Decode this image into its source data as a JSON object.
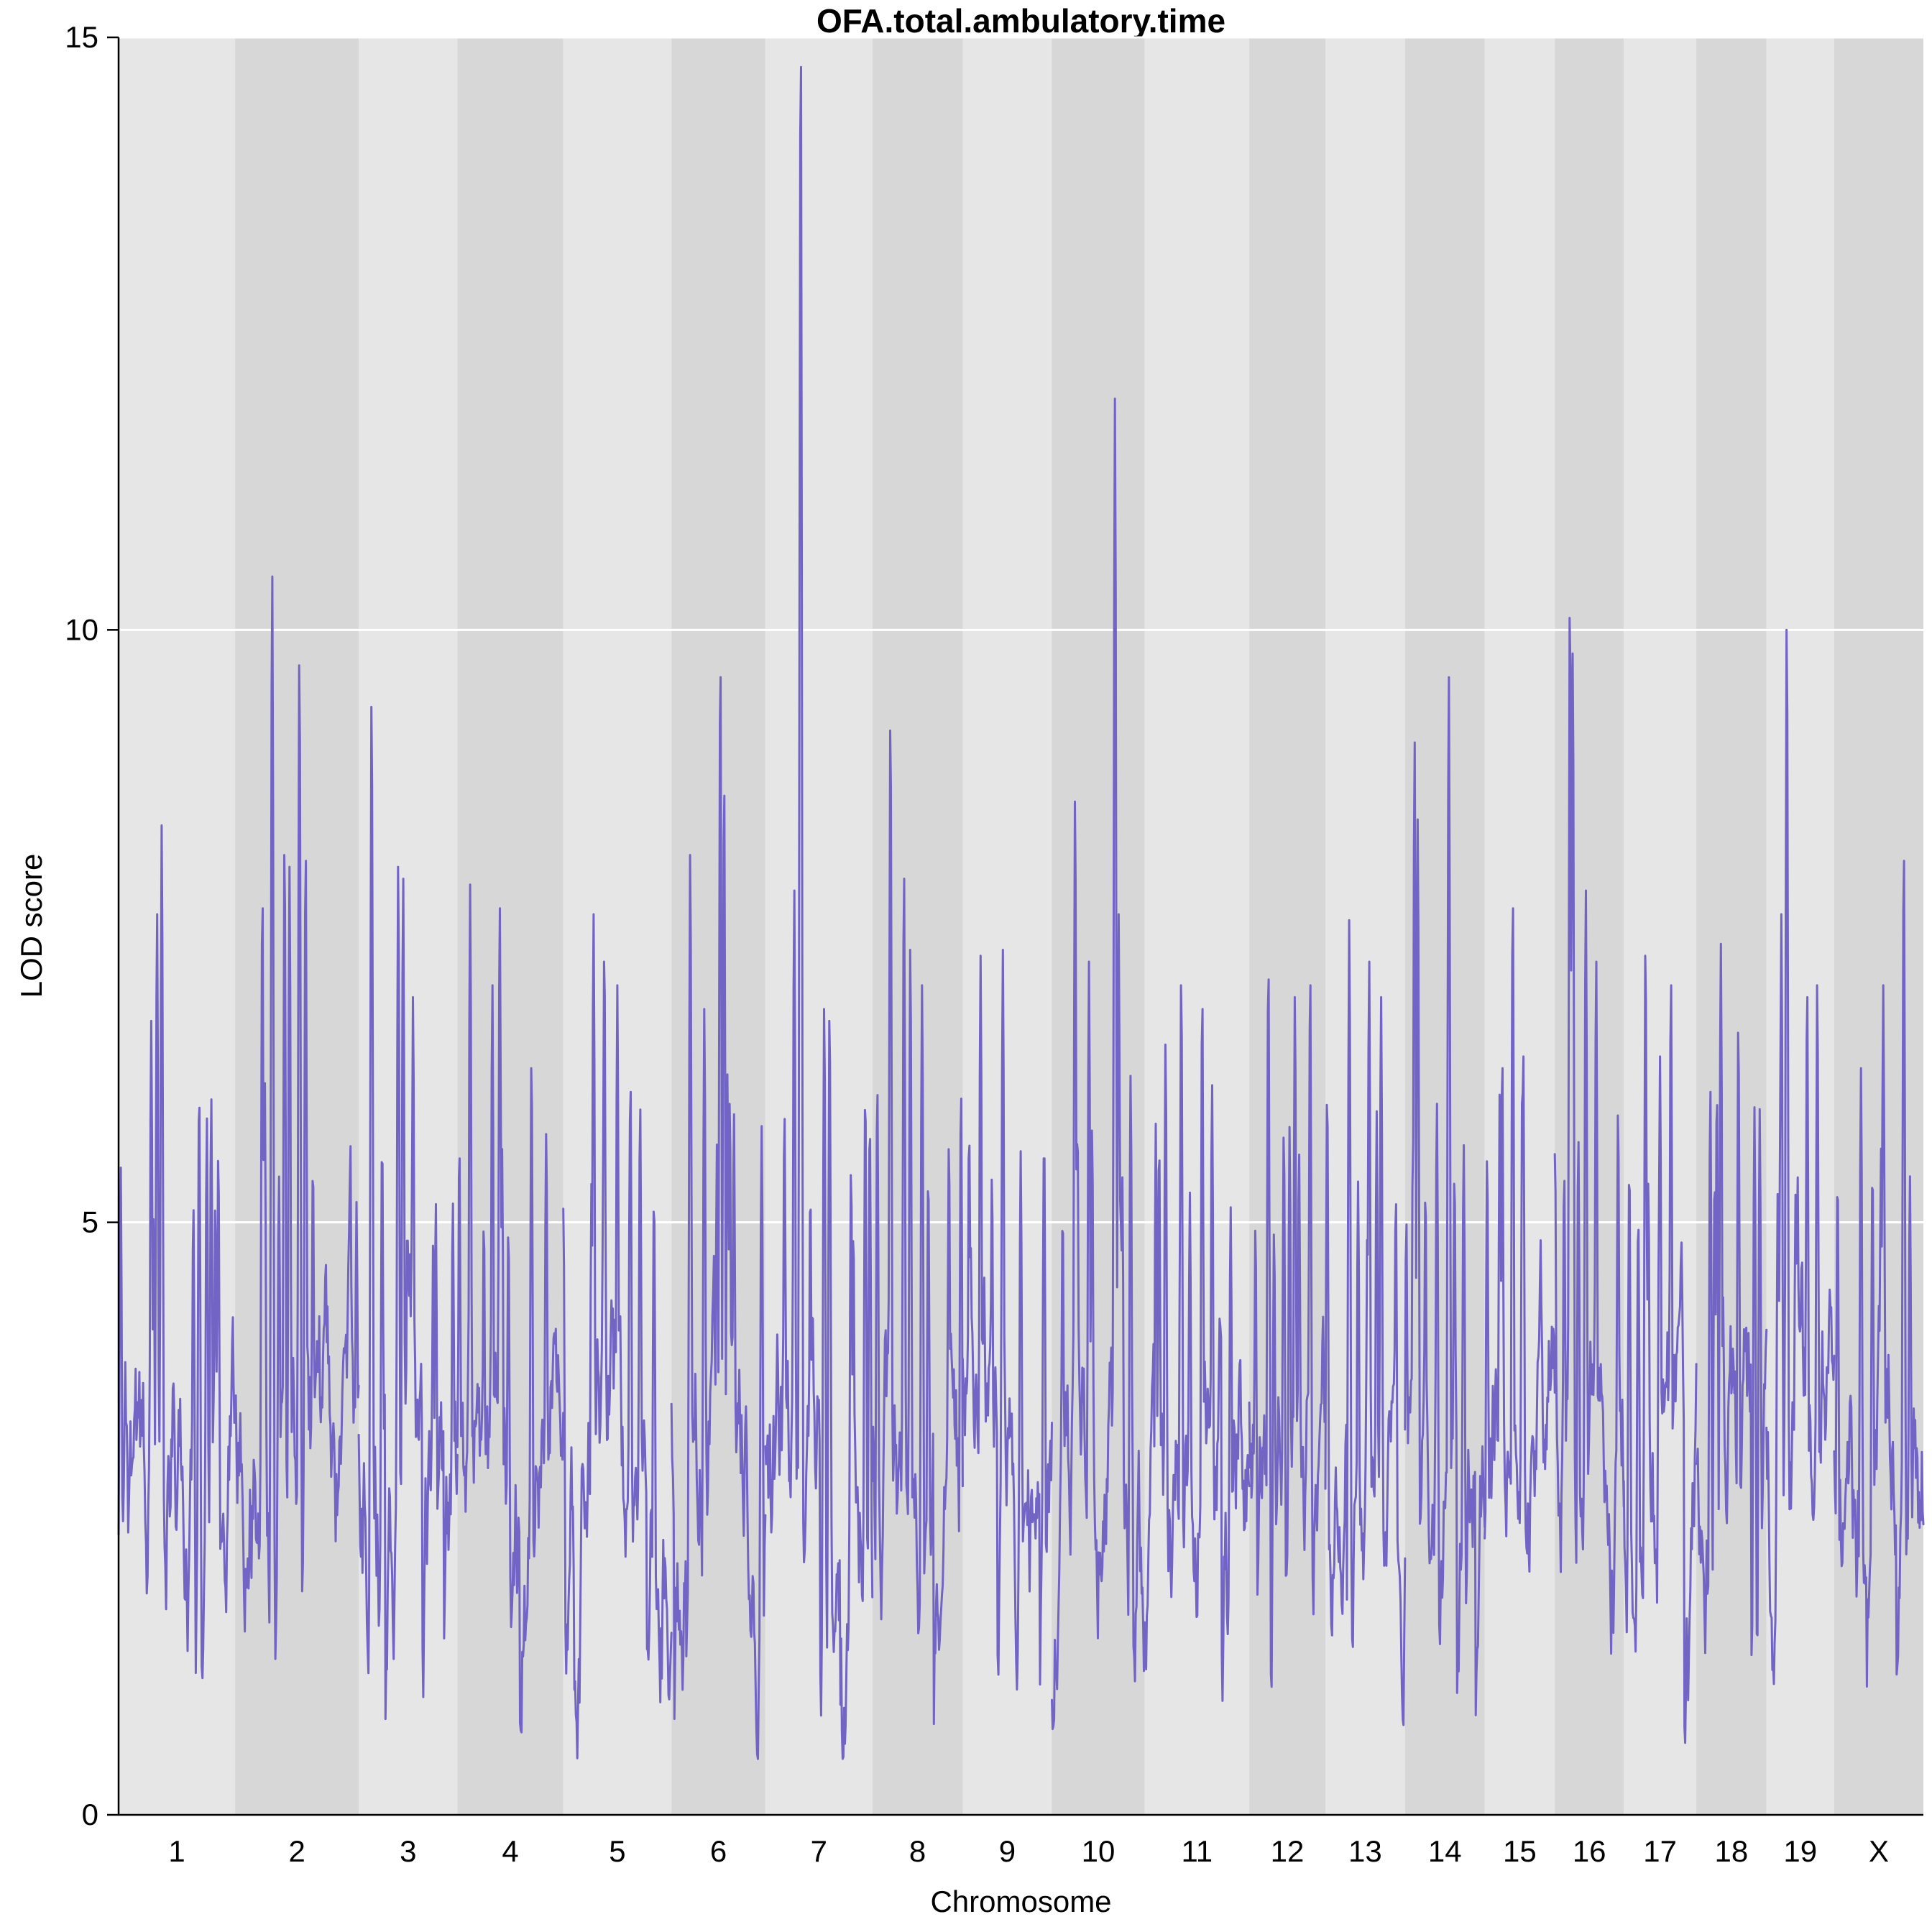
{
  "chart_data": {
    "type": "line",
    "title": "OFA.total.ambulatory.time",
    "xlabel": "Chromosome",
    "ylabel": "LOD score",
    "ylim": [
      0,
      15
    ],
    "yticks": [
      0,
      5,
      10,
      15
    ],
    "grid": "white horizontal gridlines at LOD 5, 10, 15 over alternating gray chromosome bands",
    "legend": "none",
    "series_color": "#7164c4",
    "band_colors": [
      "#e6e6e6",
      "#d7d7d7"
    ],
    "baseline": {
      "description": "dense noisy LOD trace fluctuating roughly between 0.5 and 5.3 across all chromosomes",
      "typical_mean": 3.0
    },
    "chromosomes": [
      {
        "label": "1",
        "length_cM": 98,
        "peaks": [
          [
            0.37,
            8.35
          ],
          [
            0.33,
            7.6
          ],
          [
            0.28,
            6.7
          ],
          [
            0.83,
            5.1
          ]
        ]
      },
      {
        "label": "2",
        "length_cM": 104,
        "peaks": [
          [
            0.3,
            10.45
          ],
          [
            0.52,
            9.7
          ],
          [
            0.57,
            8.05
          ],
          [
            0.4,
            8.1
          ],
          [
            0.22,
            7.65
          ],
          [
            0.44,
            8.0
          ]
        ]
      },
      {
        "label": "3",
        "length_cM": 83,
        "peaks": [
          [
            0.13,
            9.35
          ],
          [
            0.4,
            8.0
          ],
          [
            0.45,
            7.9
          ],
          [
            0.55,
            6.9
          ]
        ]
      },
      {
        "label": "4",
        "length_cM": 89,
        "peaks": [
          [
            0.12,
            7.85
          ],
          [
            0.4,
            7.65
          ],
          [
            0.33,
            7.0
          ],
          [
            0.7,
            6.3
          ]
        ]
      },
      {
        "label": "5",
        "length_cM": 91,
        "peaks": [
          [
            0.28,
            7.6
          ],
          [
            0.38,
            7.2
          ],
          [
            0.5,
            7.0
          ],
          [
            0.62,
            6.1
          ]
        ]
      },
      {
        "label": "6",
        "length_cM": 79,
        "peaks": [
          [
            0.2,
            8.1
          ],
          [
            0.52,
            9.6
          ],
          [
            0.56,
            8.6
          ],
          [
            0.35,
            6.8
          ]
        ]
      },
      {
        "label": "7",
        "length_cM": 90,
        "peaks": [
          [
            0.33,
            14.75
          ],
          [
            0.27,
            7.8
          ],
          [
            0.55,
            6.8
          ],
          [
            0.6,
            6.7
          ]
        ]
      },
      {
        "label": "8",
        "length_cM": 76,
        "peaks": [
          [
            0.2,
            9.15
          ],
          [
            0.35,
            7.9
          ],
          [
            0.42,
            7.3
          ],
          [
            0.55,
            7.0
          ]
        ]
      },
      {
        "label": "9",
        "length_cM": 75,
        "peaks": [
          [
            0.2,
            7.25
          ],
          [
            0.45,
            7.3
          ],
          [
            0.65,
            5.6
          ]
        ]
      },
      {
        "label": "10",
        "length_cM": 78,
        "peaks": [
          [
            0.25,
            8.55
          ],
          [
            0.68,
            11.95
          ],
          [
            0.72,
            7.6
          ],
          [
            0.4,
            7.2
          ]
        ]
      },
      {
        "label": "11",
        "length_cM": 88,
        "peaks": [
          [
            0.35,
            7.0
          ],
          [
            0.55,
            6.8
          ],
          [
            0.2,
            6.5
          ]
        ]
      },
      {
        "label": "12",
        "length_cM": 64,
        "peaks": [
          [
            0.25,
            7.05
          ],
          [
            0.6,
            6.9
          ],
          [
            0.8,
            7.0
          ]
        ]
      },
      {
        "label": "13",
        "length_cM": 67,
        "peaks": [
          [
            0.3,
            7.55
          ],
          [
            0.55,
            7.2
          ],
          [
            0.7,
            6.9
          ]
        ]
      },
      {
        "label": "14",
        "length_cM": 67,
        "peaks": [
          [
            0.12,
            9.05
          ],
          [
            0.16,
            8.4
          ],
          [
            0.55,
            9.6
          ],
          [
            0.4,
            6.0
          ]
        ]
      },
      {
        "label": "15",
        "length_cM": 59,
        "peaks": [
          [
            0.4,
            7.65
          ],
          [
            0.55,
            6.4
          ],
          [
            0.25,
            6.3
          ]
        ]
      },
      {
        "label": "16",
        "length_cM": 58,
        "peaks": [
          [
            0.22,
            10.1
          ],
          [
            0.26,
            9.8
          ],
          [
            0.45,
            7.8
          ],
          [
            0.6,
            7.2
          ]
        ]
      },
      {
        "label": "17",
        "length_cM": 61,
        "peaks": [
          [
            0.3,
            7.25
          ],
          [
            0.65,
            7.0
          ],
          [
            0.5,
            6.4
          ]
        ]
      },
      {
        "label": "18",
        "length_cM": 59,
        "peaks": [
          [
            0.35,
            7.35
          ],
          [
            0.6,
            6.6
          ],
          [
            0.2,
            6.1
          ]
        ]
      },
      {
        "label": "19",
        "length_cM": 57,
        "peaks": [
          [
            0.3,
            10.0
          ],
          [
            0.22,
            7.6
          ],
          [
            0.6,
            6.9
          ],
          [
            0.75,
            7.0
          ]
        ]
      },
      {
        "label": "X",
        "length_cM": 75,
        "peaks": [
          [
            0.78,
            8.05
          ],
          [
            0.55,
            7.0
          ],
          [
            0.3,
            6.3
          ]
        ]
      }
    ]
  }
}
